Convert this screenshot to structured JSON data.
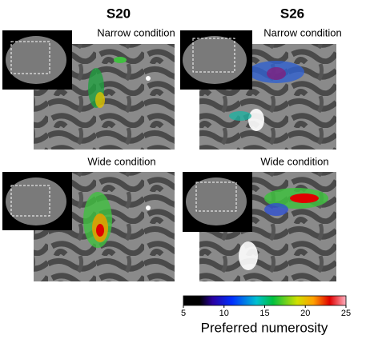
{
  "subjects": [
    "S20",
    "S26"
  ],
  "conditions": [
    "Narrow condition",
    "Wide condition"
  ],
  "colorbar": {
    "label": "Preferred numerosity",
    "lim": [
      5,
      25
    ],
    "ticks": [
      5,
      10,
      15,
      20,
      25
    ]
  }
}
